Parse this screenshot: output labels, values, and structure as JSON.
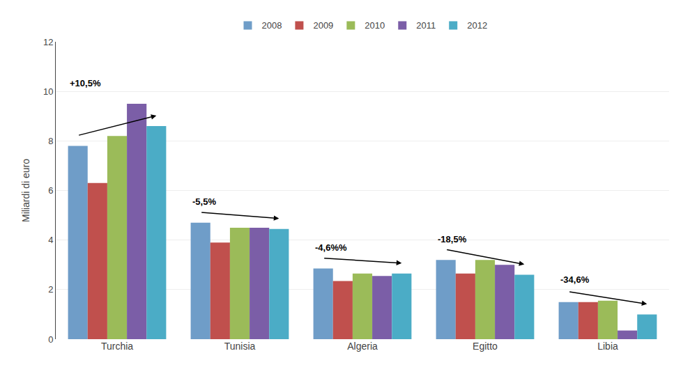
{
  "chart_data": {
    "type": "bar",
    "categories": [
      "Turchia",
      "Tunisia",
      "Algeria",
      "Egitto",
      "Libia"
    ],
    "series": [
      {
        "name": "2008",
        "color": "#6F9DC8",
        "values": [
          7.8,
          4.7,
          2.85,
          3.2,
          1.5
        ]
      },
      {
        "name": "2009",
        "color": "#C0504D",
        "values": [
          6.3,
          3.9,
          2.35,
          2.65,
          1.5
        ]
      },
      {
        "name": "2010",
        "color": "#9BBB59",
        "values": [
          8.2,
          4.5,
          2.65,
          3.2,
          1.55
        ]
      },
      {
        "name": "2011",
        "color": "#7B5EA7",
        "values": [
          9.5,
          4.5,
          2.55,
          3.0,
          0.35
        ]
      },
      {
        "name": "2012",
        "color": "#4BACC6",
        "values": [
          8.6,
          4.45,
          2.65,
          2.6,
          1.0
        ]
      }
    ],
    "ylabel": "Miliardi di euro",
    "ylim": [
      0,
      12
    ],
    "yticks": [
      0,
      2,
      4,
      6,
      8,
      10,
      12
    ],
    "grid": true,
    "legend": "upper center",
    "annotations": [
      {
        "text": "+10,5%",
        "category": "Turchia"
      },
      {
        "text": "-5,5%",
        "category": "Tunisia"
      },
      {
        "text": "-4,6%%",
        "category": "Algeria"
      },
      {
        "text": "-18,5%",
        "category": "Egitto"
      },
      {
        "text": "-34,6%",
        "category": "Libia"
      }
    ]
  }
}
